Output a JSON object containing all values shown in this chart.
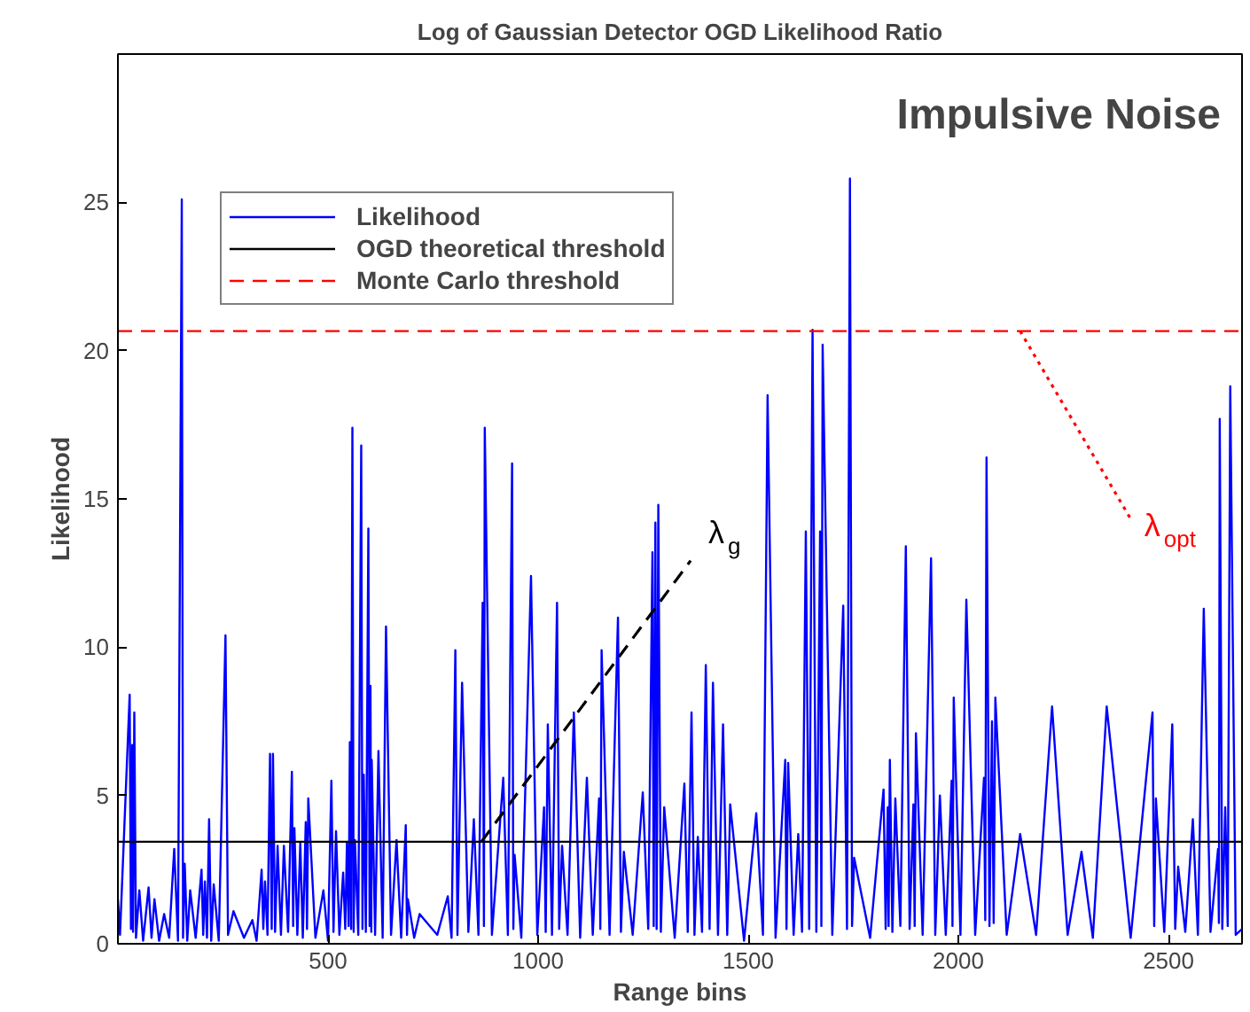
{
  "chart_data": {
    "type": "line",
    "title": "Log of Gaussian Detector OGD Likelihood Ratio",
    "xlabel": "Range bins",
    "ylabel": "Likelihood",
    "xlim": [
      0,
      2675
    ],
    "ylim": [
      0,
      30
    ],
    "xticks": [
      500,
      1000,
      1500,
      2000,
      2500
    ],
    "yticks": [
      0,
      5,
      10,
      15,
      20,
      25
    ],
    "grid": false,
    "legend": "top left",
    "line_style": "solid",
    "series": [
      {
        "name": "Likelihood",
        "color": "#0000ff",
        "x": [
          0,
          5,
          28,
          31,
          34,
          36,
          39,
          43,
          51,
          60,
          73,
          80,
          87,
          98,
          110,
          122,
          134,
          143,
          152,
          155,
          159,
          165,
          172,
          185,
          199,
          203,
          207,
          212,
          217,
          222,
          228,
          240,
          256,
          262,
          275,
          300,
          320,
          330,
          342,
          346,
          350,
          356,
          362,
          366,
          369,
          374,
          380,
          388,
          395,
          405,
          414,
          417,
          420,
          427,
          434,
          440,
          447,
          450,
          453,
          470,
          489,
          500,
          508,
          513,
          519,
          527,
          536,
          541,
          545,
          549,
          552,
          555,
          558,
          561,
          564,
          572,
          579,
          582,
          585,
          590,
          596,
          599,
          601,
          603,
          604,
          612,
          620,
          630,
          638,
          650,
          663,
          674,
          685,
          688,
          690,
          705,
          718,
          760,
          785,
          794,
          803,
          808,
          819,
          834,
          847,
          858,
          868,
          871,
          873,
          890,
          917,
          928,
          938,
          941,
          944,
          960,
          983,
          998,
          1014,
          1018,
          1023,
          1033,
          1045,
          1050,
          1057,
          1070,
          1085,
          1100,
          1116,
          1130,
          1145,
          1148,
          1151,
          1170,
          1190,
          1197,
          1204,
          1225,
          1249,
          1262,
          1272,
          1275,
          1279,
          1282,
          1286,
          1292,
          1300,
          1325,
          1348,
          1356,
          1365,
          1372,
          1380,
          1390,
          1399,
          1408,
          1416,
          1428,
          1440,
          1450,
          1457,
          1490,
          1519,
          1535,
          1546,
          1565,
          1588,
          1591,
          1595,
          1608,
          1619,
          1628,
          1637,
          1645,
          1653,
          1662,
          1671,
          1674,
          1677,
          1700,
          1726,
          1735,
          1742,
          1747,
          1752,
          1790,
          1822,
          1827,
          1832,
          1834,
          1837,
          1843,
          1850,
          1862,
          1875,
          1884,
          1893,
          1896,
          1899,
          1915,
          1935,
          1945,
          1956,
          1970,
          1984,
          1986,
          1989,
          2005,
          2019,
          2040,
          2061,
          2064,
          2067,
          2074,
          2080,
          2084,
          2088,
          2115,
          2147,
          2185,
          2223,
          2260,
          2293,
          2320,
          2353,
          2410,
          2462,
          2466,
          2470,
          2490,
          2509,
          2516,
          2523,
          2540,
          2558,
          2570,
          2584,
          2600,
          2618,
          2620,
          2622,
          2628,
          2635,
          2641,
          2647,
          2660,
          2675
        ],
        "values": [
          1.5,
          0.3,
          8.4,
          0.5,
          6.7,
          0.4,
          7.8,
          0.2,
          1.8,
          0.1,
          1.9,
          0.2,
          1.5,
          0.1,
          1.0,
          0.2,
          3.2,
          0.1,
          25.1,
          0.2,
          2.7,
          0.1,
          1.8,
          0.2,
          2.5,
          0.3,
          2.1,
          0.2,
          4.2,
          0.1,
          2.0,
          0.1,
          10.4,
          0.3,
          1.1,
          0.2,
          0.8,
          0.1,
          2.5,
          0.5,
          2.1,
          0.3,
          6.4,
          0.5,
          6.4,
          0.4,
          3.3,
          0.3,
          3.3,
          0.4,
          5.8,
          0.6,
          3.9,
          0.3,
          3.4,
          0.2,
          4.1,
          0.5,
          4.9,
          0.2,
          1.8,
          0.1,
          5.5,
          0.4,
          3.8,
          0.3,
          2.4,
          0.5,
          3.4,
          0.6,
          6.8,
          0.5,
          17.4,
          0.4,
          3.5,
          0.3,
          16.8,
          0.5,
          5.7,
          0.4,
          14.0,
          0.6,
          8.7,
          0.4,
          6.2,
          0.3,
          6.5,
          0.2,
          10.7,
          0.3,
          3.5,
          0.2,
          4.0,
          0.3,
          1.5,
          0.2,
          1.0,
          0.3,
          1.6,
          0.2,
          9.9,
          0.3,
          8.8,
          0.4,
          4.2,
          0.3,
          11.5,
          0.6,
          17.4,
          0.3,
          5.6,
          0.3,
          16.2,
          0.5,
          3.0,
          0.2,
          12.4,
          0.3,
          4.6,
          0.4,
          7.4,
          0.3,
          11.5,
          0.5,
          3.3,
          0.3,
          7.8,
          0.2,
          5.6,
          0.3,
          4.9,
          0.5,
          9.9,
          0.3,
          11.0,
          0.4,
          3.1,
          0.3,
          5.1,
          0.5,
          13.2,
          0.6,
          14.2,
          0.5,
          14.8,
          0.4,
          4.6,
          0.2,
          5.4,
          0.4,
          7.8,
          0.3,
          3.6,
          0.4,
          9.4,
          0.5,
          8.8,
          0.3,
          7.4,
          0.3,
          4.7,
          0.1,
          4.4,
          0.3,
          18.5,
          0.2,
          6.2,
          0.5,
          6.1,
          0.3,
          3.7,
          0.4,
          13.9,
          0.5,
          20.7,
          0.4,
          13.9,
          0.6,
          20.2,
          0.3,
          11.4,
          0.5,
          25.8,
          0.6,
          2.9,
          0.2,
          5.2,
          0.5,
          4.6,
          0.6,
          6.2,
          0.4,
          4.9,
          0.6,
          13.4,
          0.5,
          4.7,
          0.6,
          7.1,
          0.3,
          13.0,
          0.3,
          5.0,
          0.3,
          5.5,
          0.6,
          8.3,
          0.3,
          11.6,
          0.3,
          5.6,
          0.8,
          16.4,
          0.6,
          7.5,
          0.7,
          8.3,
          0.3,
          3.7,
          0.3,
          8.0,
          0.3,
          3.1,
          0.2,
          8.0,
          0.2,
          7.8,
          0.6,
          4.9,
          0.4,
          7.4,
          0.5,
          2.6,
          0.4,
          4.2,
          0.3,
          11.3,
          0.4,
          3.2,
          0.7,
          17.7,
          0.5,
          4.6,
          0.6,
          18.8,
          0.3,
          0.5
        ]
      }
    ],
    "ref_lines": [
      {
        "axis": "y",
        "value": 3.44,
        "label": "OGD theoretical threshold",
        "color": "#000000",
        "line_style": "solid"
      },
      {
        "axis": "y",
        "value": 20.66,
        "label": "Monte Carlo threshold",
        "color": "#ff0000",
        "line_style": "dashed"
      }
    ],
    "annotations": [
      {
        "text": "λ$_{g}$",
        "x": 865,
        "y": 3.44
      },
      {
        "text": "λ$_{opt}$",
        "x": 2147,
        "y": 20.66
      },
      "Impulsive Noise"
    ]
  }
}
